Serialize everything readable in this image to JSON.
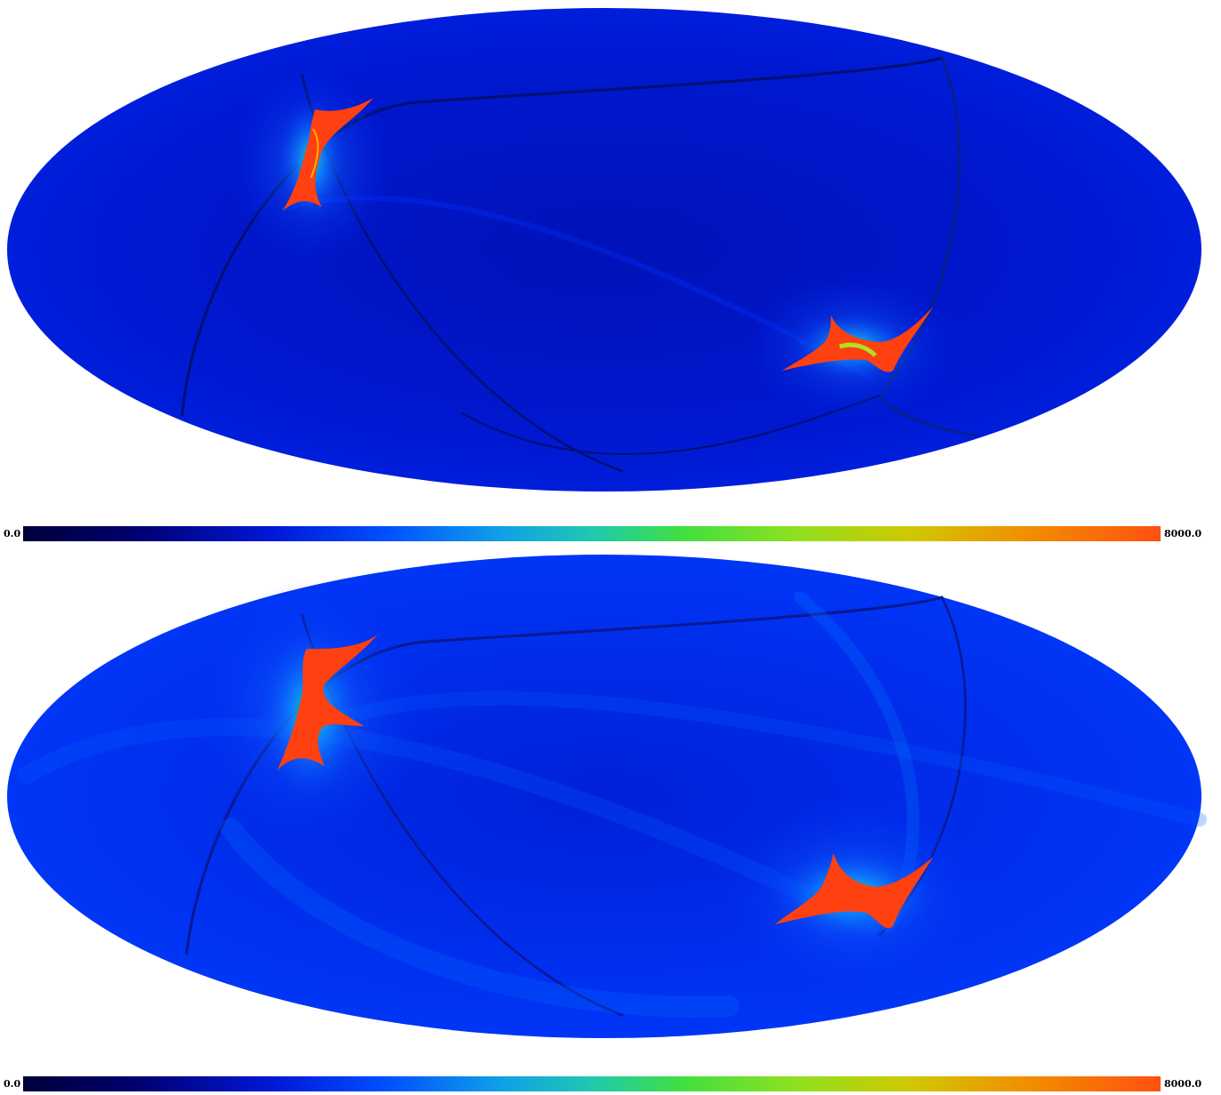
{
  "chart_data": [
    {
      "type": "heatmap",
      "projection": "mollweide",
      "colormap": [
        "#00003a",
        "#0000aa",
        "#0018e8",
        "#0080ff",
        "#18c8c8",
        "#40e040",
        "#a8e020",
        "#e8b000",
        "#ff6010",
        "#ff3010"
      ],
      "colorbar": {
        "min_label": "0.0",
        "max_label": "8000.0",
        "min": 0.0,
        "max": 8000.0
      }
    },
    {
      "type": "heatmap",
      "projection": "mollweide",
      "colormap": [
        "#00003a",
        "#0000aa",
        "#0018e8",
        "#0080ff",
        "#18c8c8",
        "#40e040",
        "#a8e020",
        "#e8b000",
        "#ff6010",
        "#ff3010"
      ],
      "colorbar": {
        "min_label": "0.0",
        "max_label": "8000.0",
        "min": 0.0,
        "max": 8000.0
      }
    }
  ]
}
